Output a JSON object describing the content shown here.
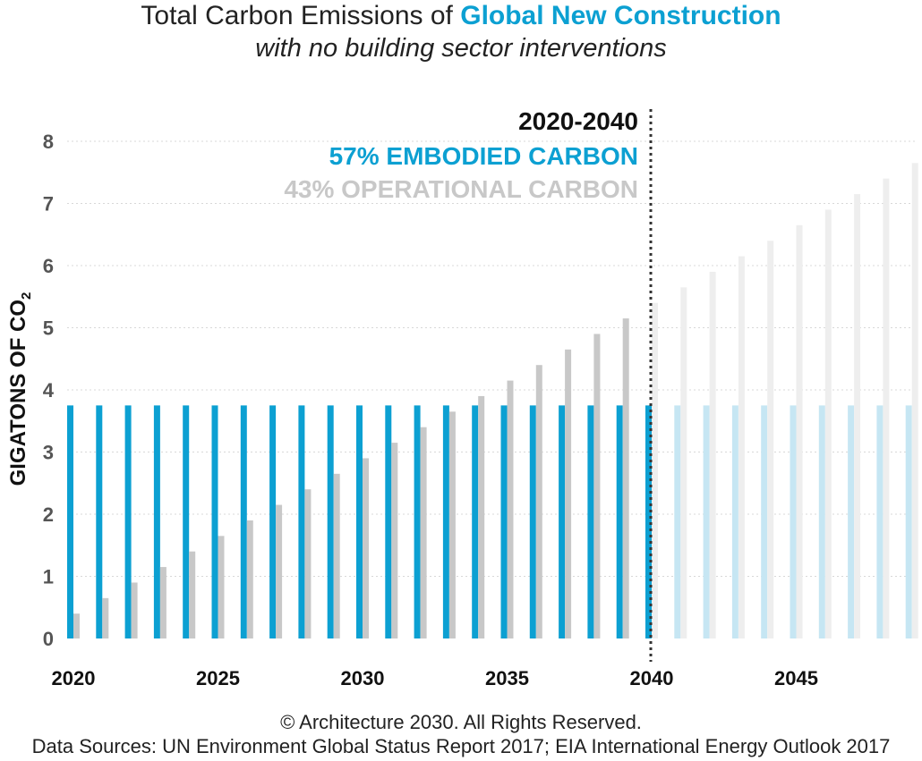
{
  "header": {
    "title_prefix": "Total Carbon Emissions of ",
    "title_accent": "Global New Construction",
    "subtitle": "with no building sector interventions"
  },
  "annotation": {
    "period": "2020-2040",
    "embodied": "57% EMBODIED CARBON",
    "operational": "43% OPERATIONAL CARBON"
  },
  "footer": {
    "copyright": "© Architecture 2030. All Rights Reserved.",
    "sources": "Data Sources: UN Environment Global Status Report 2017; EIA International Energy Outlook 2017"
  },
  "colors": {
    "embodied": "#0ca0d2",
    "operational": "#c8c8c8",
    "embodied_faded": "#c6e6f3",
    "operational_faded": "#eeeeee"
  },
  "chart_data": {
    "type": "bar",
    "ylabel": "GIGATONS OF CO",
    "ylabel_subscript": "2",
    "ylim": [
      0,
      8
    ],
    "yticks": [
      0,
      1,
      2,
      3,
      4,
      5,
      6,
      7,
      8
    ],
    "xtick_labels": [
      "2020",
      "2025",
      "2030",
      "2035",
      "2040",
      "2045"
    ],
    "grid": true,
    "divider_year": 2040,
    "categories": [
      2020,
      2021,
      2022,
      2023,
      2024,
      2025,
      2026,
      2027,
      2028,
      2029,
      2030,
      2031,
      2032,
      2033,
      2034,
      2035,
      2036,
      2037,
      2038,
      2039,
      2040,
      2041,
      2042,
      2043,
      2044,
      2045,
      2046,
      2047,
      2048,
      2049
    ],
    "series": [
      {
        "key": "embodied",
        "values": [
          3.75,
          3.75,
          3.75,
          3.75,
          3.75,
          3.75,
          3.75,
          3.75,
          3.75,
          3.75,
          3.75,
          3.75,
          3.75,
          3.75,
          3.75,
          3.75,
          3.75,
          3.75,
          3.75,
          3.75,
          3.75,
          3.75,
          3.75,
          3.75,
          3.75,
          3.75,
          3.75,
          3.75,
          3.75,
          3.75
        ]
      },
      {
        "key": "operational",
        "values": [
          0.4,
          0.65,
          0.9,
          1.15,
          1.4,
          1.65,
          1.9,
          2.15,
          2.4,
          2.65,
          2.9,
          3.15,
          3.4,
          3.65,
          3.9,
          4.15,
          4.4,
          4.65,
          4.9,
          5.15,
          5.4,
          5.65,
          5.9,
          6.15,
          6.4,
          6.65,
          6.9,
          7.15,
          7.4,
          7.65
        ]
      }
    ]
  }
}
